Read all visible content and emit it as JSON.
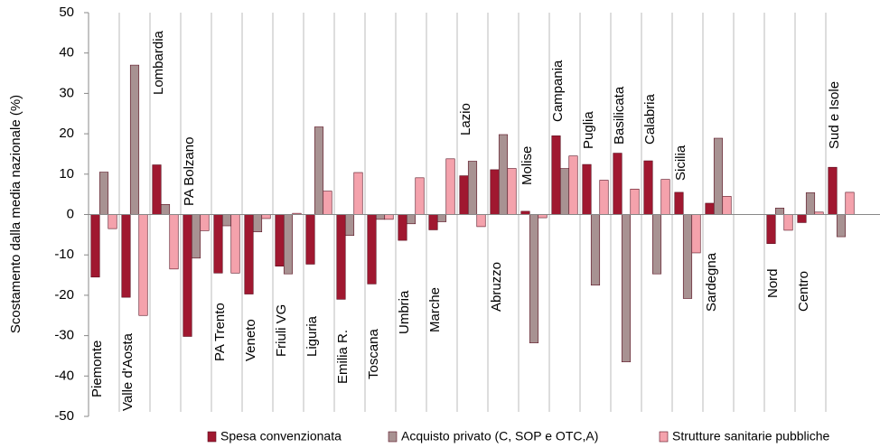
{
  "chart_data": {
    "type": "bar",
    "y_label": "Scostamento dalla media nazionale (%)",
    "categories": [
      "Piemonte",
      "Valle d'Aosta",
      "Lombardia",
      "PA Bolzano",
      "PA Trento",
      "Veneto",
      "Friuli VG",
      "Liguria",
      "Emilia R.",
      "Toscana",
      "Umbria",
      "Marche",
      "Lazio",
      "Abruzzo",
      "Molise",
      "Campania",
      "Puglia",
      "Basilicata",
      "Calabria",
      "Sicilia",
      "Sardegna",
      null,
      "Nord",
      "Centro",
      "Sud e Isole"
    ],
    "series": [
      {
        "name": "Spesa convenzionata",
        "color": "#a01830",
        "values": [
          -15.5,
          -20.5,
          12.3,
          -30.2,
          -14.5,
          -19.7,
          -12.8,
          -12.3,
          -21,
          -17.2,
          -6.4,
          -3.8,
          9.6,
          11.1,
          0.8,
          19.5,
          12.4,
          15.2,
          13.3,
          5.5,
          2.8,
          null,
          -7.2,
          -2,
          11.7
        ]
      },
      {
        "name": "Acquisto privato (C, SOP e OTC,A)",
        "color": "#a89292",
        "values": [
          10.5,
          37,
          2.5,
          -10.8,
          -2.8,
          -4.3,
          -14.7,
          21.7,
          -5.2,
          -1.2,
          -2.3,
          -1.8,
          13.2,
          19.8,
          -31.8,
          11.4,
          -17.5,
          -36.5,
          -14.7,
          -20.8,
          18.9,
          null,
          1.6,
          5.4,
          -5.5
        ]
      },
      {
        "name": "Strutture sanitarie pubbliche",
        "color": "#f4a2ac",
        "values": [
          -3.5,
          -25,
          -13.5,
          -4,
          -14.5,
          -1,
          0.3,
          5.8,
          10.4,
          -1.2,
          9.1,
          13.8,
          -3,
          11.4,
          -0.8,
          14.5,
          8.5,
          6.3,
          8.7,
          -9.5,
          4.5,
          null,
          -3.9,
          0.6,
          5.5
        ]
      }
    ],
    "ylim": [
      -50,
      50
    ],
    "yticks": [
      -50,
      -40,
      -30,
      -20,
      -10,
      0,
      10,
      20,
      30,
      40,
      50
    ],
    "legend": "bottom"
  }
}
